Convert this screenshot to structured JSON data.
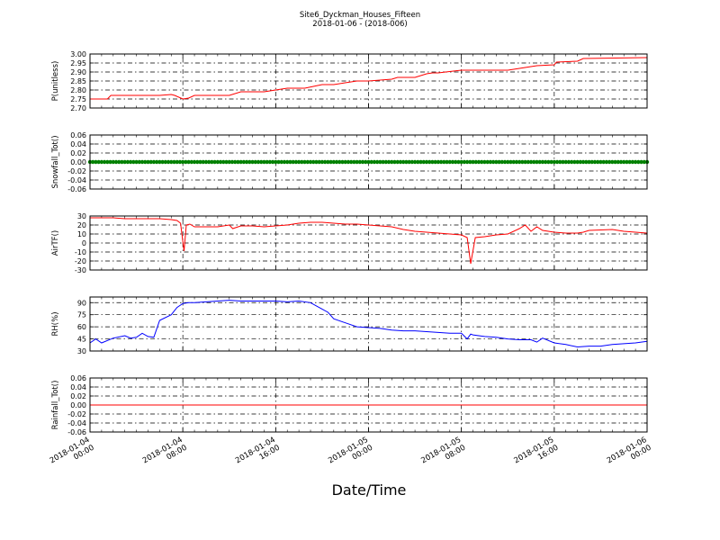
{
  "figure": {
    "title_line1": "Site6_Dyckman_Houses_Fifteen",
    "title_line2": "2018-01-06 - (2018-006)",
    "xlabel": "Date/Time",
    "x_ticks": [
      {
        "t": 0,
        "line1": "2018-01-04",
        "line2": "00:00"
      },
      {
        "t": 8,
        "line1": "2018-01-04",
        "line2": "08:00"
      },
      {
        "t": 16,
        "line1": "2018-01-04",
        "line2": "16:00"
      },
      {
        "t": 24,
        "line1": "2018-01-05",
        "line2": "00:00"
      },
      {
        "t": 32,
        "line1": "2018-01-05",
        "line2": "08:00"
      },
      {
        "t": 40,
        "line1": "2018-01-05",
        "line2": "16:00"
      },
      {
        "t": 48,
        "line1": "2018-01-06",
        "line2": "00:00"
      }
    ]
  },
  "chart_data": [
    {
      "type": "line",
      "ylabel": "P(unitless)",
      "ylim": [
        2.7,
        3.0
      ],
      "yticks": [
        "2.70",
        "2.75",
        "2.80",
        "2.85",
        "2.90",
        "2.95",
        "3.00"
      ],
      "grid": true,
      "color": "#ff0000",
      "style": "line",
      "x": [
        0,
        1.5,
        1.8,
        3,
        4,
        6,
        7,
        7.3,
        8,
        8.5,
        9,
        12,
        13,
        15,
        16,
        17,
        18,
        18.5,
        20,
        21,
        23,
        24,
        26,
        26.5,
        28,
        29,
        29.5,
        30,
        32,
        34,
        34.5,
        36,
        38,
        38.5,
        40,
        40.2,
        42,
        42.5,
        48
      ],
      "values": [
        2.75,
        2.75,
        2.77,
        2.77,
        2.77,
        2.77,
        2.775,
        2.77,
        2.75,
        2.755,
        2.77,
        2.77,
        2.79,
        2.79,
        2.8,
        2.81,
        2.81,
        2.81,
        2.83,
        2.83,
        2.85,
        2.85,
        2.86,
        2.87,
        2.87,
        2.89,
        2.895,
        2.895,
        2.91,
        2.91,
        2.91,
        2.91,
        2.93,
        2.935,
        2.94,
        2.955,
        2.96,
        2.975,
        2.98
      ]
    },
    {
      "type": "scatter",
      "ylabel": "Snowfall_Tot()",
      "ylim": [
        -0.06,
        0.06
      ],
      "yticks": [
        "-0.06",
        "-0.04",
        "-0.02",
        "0.00",
        "0.02",
        "0.04",
        "0.06"
      ],
      "grid": true,
      "color": "#008000",
      "style": "dots",
      "x_range": [
        0,
        48
      ],
      "constant_value": 0.0
    },
    {
      "type": "line",
      "ylabel": "AirTF()",
      "ylim": [
        -30,
        30
      ],
      "yticks": [
        "-30",
        "-20",
        "-10",
        "0",
        "10",
        "20",
        "30"
      ],
      "grid": true,
      "color": "#ff0000",
      "style": "line",
      "x": [
        0,
        2,
        3,
        6,
        7,
        7.5,
        7.8,
        8.1,
        8.3,
        8.6,
        9,
        11,
        12,
        12.3,
        13,
        14,
        15,
        16,
        17,
        18,
        19,
        20,
        21,
        22,
        23,
        24,
        25,
        26,
        27,
        28,
        29,
        30,
        31,
        32,
        32.5,
        32.8,
        33.2,
        34,
        35,
        36,
        37,
        37.5,
        38,
        38.5,
        39,
        39.5,
        40,
        41,
        42,
        42.5,
        43,
        45,
        46,
        47,
        48
      ],
      "values": [
        28,
        28,
        27,
        27,
        26,
        25,
        22,
        -9,
        20,
        21,
        18,
        18,
        20,
        16,
        19,
        19,
        18,
        19,
        20,
        22,
        23,
        23,
        22,
        21,
        21,
        20,
        19,
        18,
        15,
        13,
        12,
        11,
        10,
        9,
        6,
        -23,
        6,
        7,
        9,
        10,
        16,
        20,
        13,
        18,
        14,
        13,
        12,
        11,
        11,
        12,
        14,
        15,
        13,
        12,
        11
      ]
    },
    {
      "type": "line",
      "ylabel": "RH(%)",
      "ylim": [
        30,
        97
      ],
      "yticks": [
        "30",
        "45",
        "60",
        "75",
        "90"
      ],
      "grid": true,
      "color": "#0000ff",
      "style": "line",
      "x": [
        0,
        0.5,
        1,
        2,
        3,
        3.5,
        4,
        4.5,
        5,
        5.5,
        6,
        7,
        7.5,
        8,
        8.5,
        9,
        10,
        11,
        12,
        13,
        14,
        15,
        16,
        17,
        18,
        19,
        20,
        20.5,
        21,
        22,
        23,
        24,
        25,
        26,
        27,
        28,
        29,
        30,
        31,
        31.5,
        32,
        32.5,
        32.8,
        33,
        34,
        35,
        36,
        37,
        38,
        38.5,
        39,
        40,
        41,
        42,
        43,
        44,
        45,
        46,
        47,
        48
      ],
      "values": [
        40,
        45,
        40,
        46,
        49,
        46,
        47,
        52,
        48,
        47,
        68,
        75,
        84,
        89,
        90,
        90,
        91,
        92,
        93,
        92,
        92,
        92,
        92,
        91,
        92,
        90,
        82,
        78,
        70,
        65,
        60,
        59,
        58,
        56,
        55,
        55,
        54,
        53,
        52,
        52,
        52,
        45,
        51,
        50,
        48,
        47,
        45,
        44,
        44,
        41,
        46,
        40,
        38,
        35,
        36,
        36,
        38,
        39,
        40,
        42
      ]
    },
    {
      "type": "line",
      "ylabel": "Rainfall_Tot()",
      "ylim": [
        -0.06,
        0.06
      ],
      "yticks": [
        "-0.06",
        "-0.04",
        "-0.02",
        "0.00",
        "0.02",
        "0.04",
        "0.06"
      ],
      "grid": true,
      "color": "#ff0000",
      "style": "line",
      "x": [
        0,
        48
      ],
      "values": [
        0.0,
        0.0
      ]
    }
  ]
}
